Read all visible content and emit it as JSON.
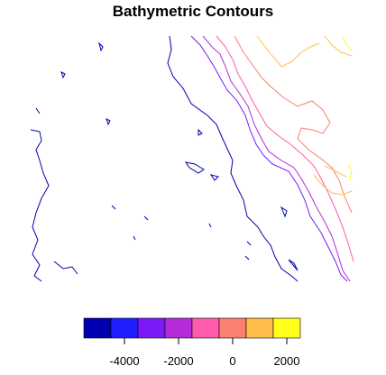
{
  "title": "Bathymetric Contours",
  "legend": {
    "colors": [
      "#0000B0",
      "#2020FF",
      "#7A1AF5",
      "#B52BD8",
      "#FF5AAE",
      "#FA8072",
      "#FFBE4A",
      "#FFFF1A"
    ],
    "tick_labels": [
      "-4000",
      "-2000",
      "0",
      "2000"
    ]
  },
  "chart_data": {
    "type": "contour",
    "title": "Bathymetric Contours",
    "levels": [
      -5000,
      -4000,
      -3000,
      -2000,
      -1000,
      0,
      1000,
      2000
    ],
    "colorbar_range": [
      -5500,
      2500
    ],
    "colorbar_ticks": [
      -4000,
      -2000,
      0,
      2000
    ],
    "colorbar_colors": [
      "#0000B0",
      "#2020FF",
      "#7A1AF5",
      "#B52BD8",
      "#FF5AAE",
      "#FA8072",
      "#FFBE4A",
      "#FFFF1A"
    ]
  }
}
